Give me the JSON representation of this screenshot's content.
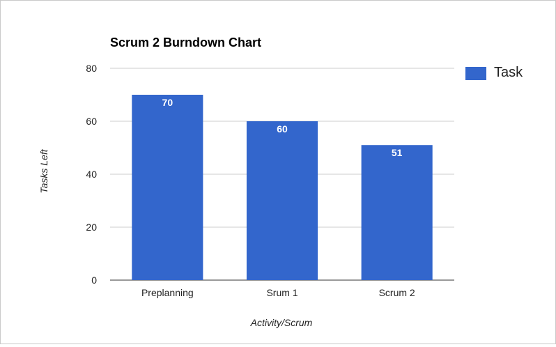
{
  "chart_data": {
    "type": "bar",
    "title": "Scrum 2 Burndown Chart",
    "xlabel": "Activity/Scrum",
    "ylabel": "Tasks Left",
    "categories": [
      "Preplanning",
      "Srum 1",
      "Scrum 2"
    ],
    "series": [
      {
        "name": "Task",
        "values": [
          70,
          60,
          51
        ]
      }
    ],
    "ylim": [
      0,
      80
    ],
    "yticks": [
      0,
      20,
      40,
      60,
      80
    ],
    "grid": true,
    "legend": "top-right",
    "data_labels": true,
    "colors": {
      "bar": "#3366cc",
      "grid": "#cccccc",
      "axis": "#333333",
      "label": "#ffffff"
    }
  }
}
